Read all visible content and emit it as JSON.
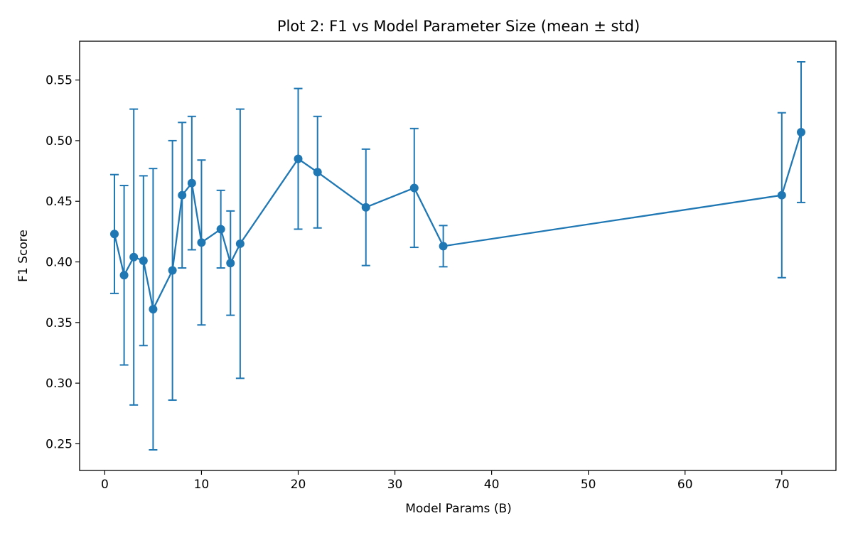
{
  "chart_data": {
    "type": "line",
    "title": "Plot 2: F1 vs Model Parameter Size (mean ± std)",
    "xlabel": "Model Params (B)",
    "ylabel": "F1 Score",
    "xlim": [
      -2.6,
      75.6
    ],
    "ylim": [
      0.228,
      0.582
    ],
    "xticks": [
      0,
      10,
      20,
      30,
      40,
      50,
      60,
      70
    ],
    "yticks": [
      0.25,
      0.3,
      0.35,
      0.4,
      0.45,
      0.5,
      0.55
    ],
    "grid": false,
    "color": "#1f77b4",
    "series": [
      {
        "x": [
          1,
          2,
          3,
          4,
          5,
          7,
          8,
          9,
          10,
          12,
          13,
          14,
          20,
          22,
          27,
          32,
          35,
          70,
          72
        ],
        "y": [
          0.423,
          0.389,
          0.404,
          0.401,
          0.361,
          0.393,
          0.455,
          0.465,
          0.416,
          0.427,
          0.399,
          0.415,
          0.485,
          0.474,
          0.445,
          0.461,
          0.413,
          0.455,
          0.507
        ],
        "err": [
          0.049,
          0.074,
          0.122,
          0.07,
          0.116,
          0.107,
          0.06,
          0.055,
          0.068,
          0.032,
          0.043,
          0.111,
          0.058,
          0.046,
          0.048,
          0.049,
          0.017,
          0.068,
          0.058
        ]
      }
    ]
  }
}
